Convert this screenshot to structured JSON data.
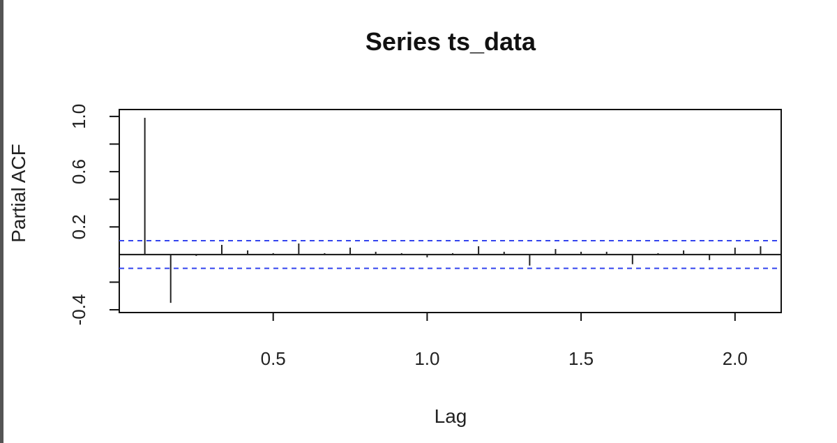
{
  "chart_data": {
    "type": "bar",
    "title": "Series  ts_data",
    "xlabel": "Lag",
    "ylabel": "Partial ACF",
    "xlim": [
      0.0,
      2.15
    ],
    "ylim": [
      -0.42,
      1.05
    ],
    "x_ticks": [
      "0.5",
      "1.0",
      "1.5",
      "2.0"
    ],
    "y_ticks": [
      "-0.4",
      "0.2",
      "0.6",
      "1.0"
    ],
    "y_minor_ticks": [
      -0.2,
      0.4,
      0.8
    ],
    "confidence_bound": 0.1,
    "colors": {
      "bars": "#222222",
      "confidence_lines": "#3344ee",
      "axes": "#111111"
    },
    "points": [
      {
        "x": 0.083,
        "y": 0.99
      },
      {
        "x": 0.167,
        "y": -0.35
      },
      {
        "x": 0.25,
        "y": -0.01
      },
      {
        "x": 0.333,
        "y": 0.07
      },
      {
        "x": 0.417,
        "y": 0.03
      },
      {
        "x": 0.5,
        "y": 0.01
      },
      {
        "x": 0.583,
        "y": 0.08
      },
      {
        "x": 0.667,
        "y": 0.01
      },
      {
        "x": 0.75,
        "y": 0.05
      },
      {
        "x": 0.833,
        "y": 0.02
      },
      {
        "x": 0.917,
        "y": 0.01
      },
      {
        "x": 1.0,
        "y": -0.02
      },
      {
        "x": 1.083,
        "y": 0.01
      },
      {
        "x": 1.167,
        "y": 0.06
      },
      {
        "x": 1.25,
        "y": 0.02
      },
      {
        "x": 1.333,
        "y": -0.08
      },
      {
        "x": 1.417,
        "y": 0.04
      },
      {
        "x": 1.5,
        "y": 0.02
      },
      {
        "x": 1.583,
        "y": 0.02
      },
      {
        "x": 1.667,
        "y": -0.07
      },
      {
        "x": 1.75,
        "y": 0.01
      },
      {
        "x": 1.833,
        "y": 0.03
      },
      {
        "x": 1.917,
        "y": -0.04
      },
      {
        "x": 2.0,
        "y": 0.05
      },
      {
        "x": 2.083,
        "y": 0.06
      }
    ]
  }
}
